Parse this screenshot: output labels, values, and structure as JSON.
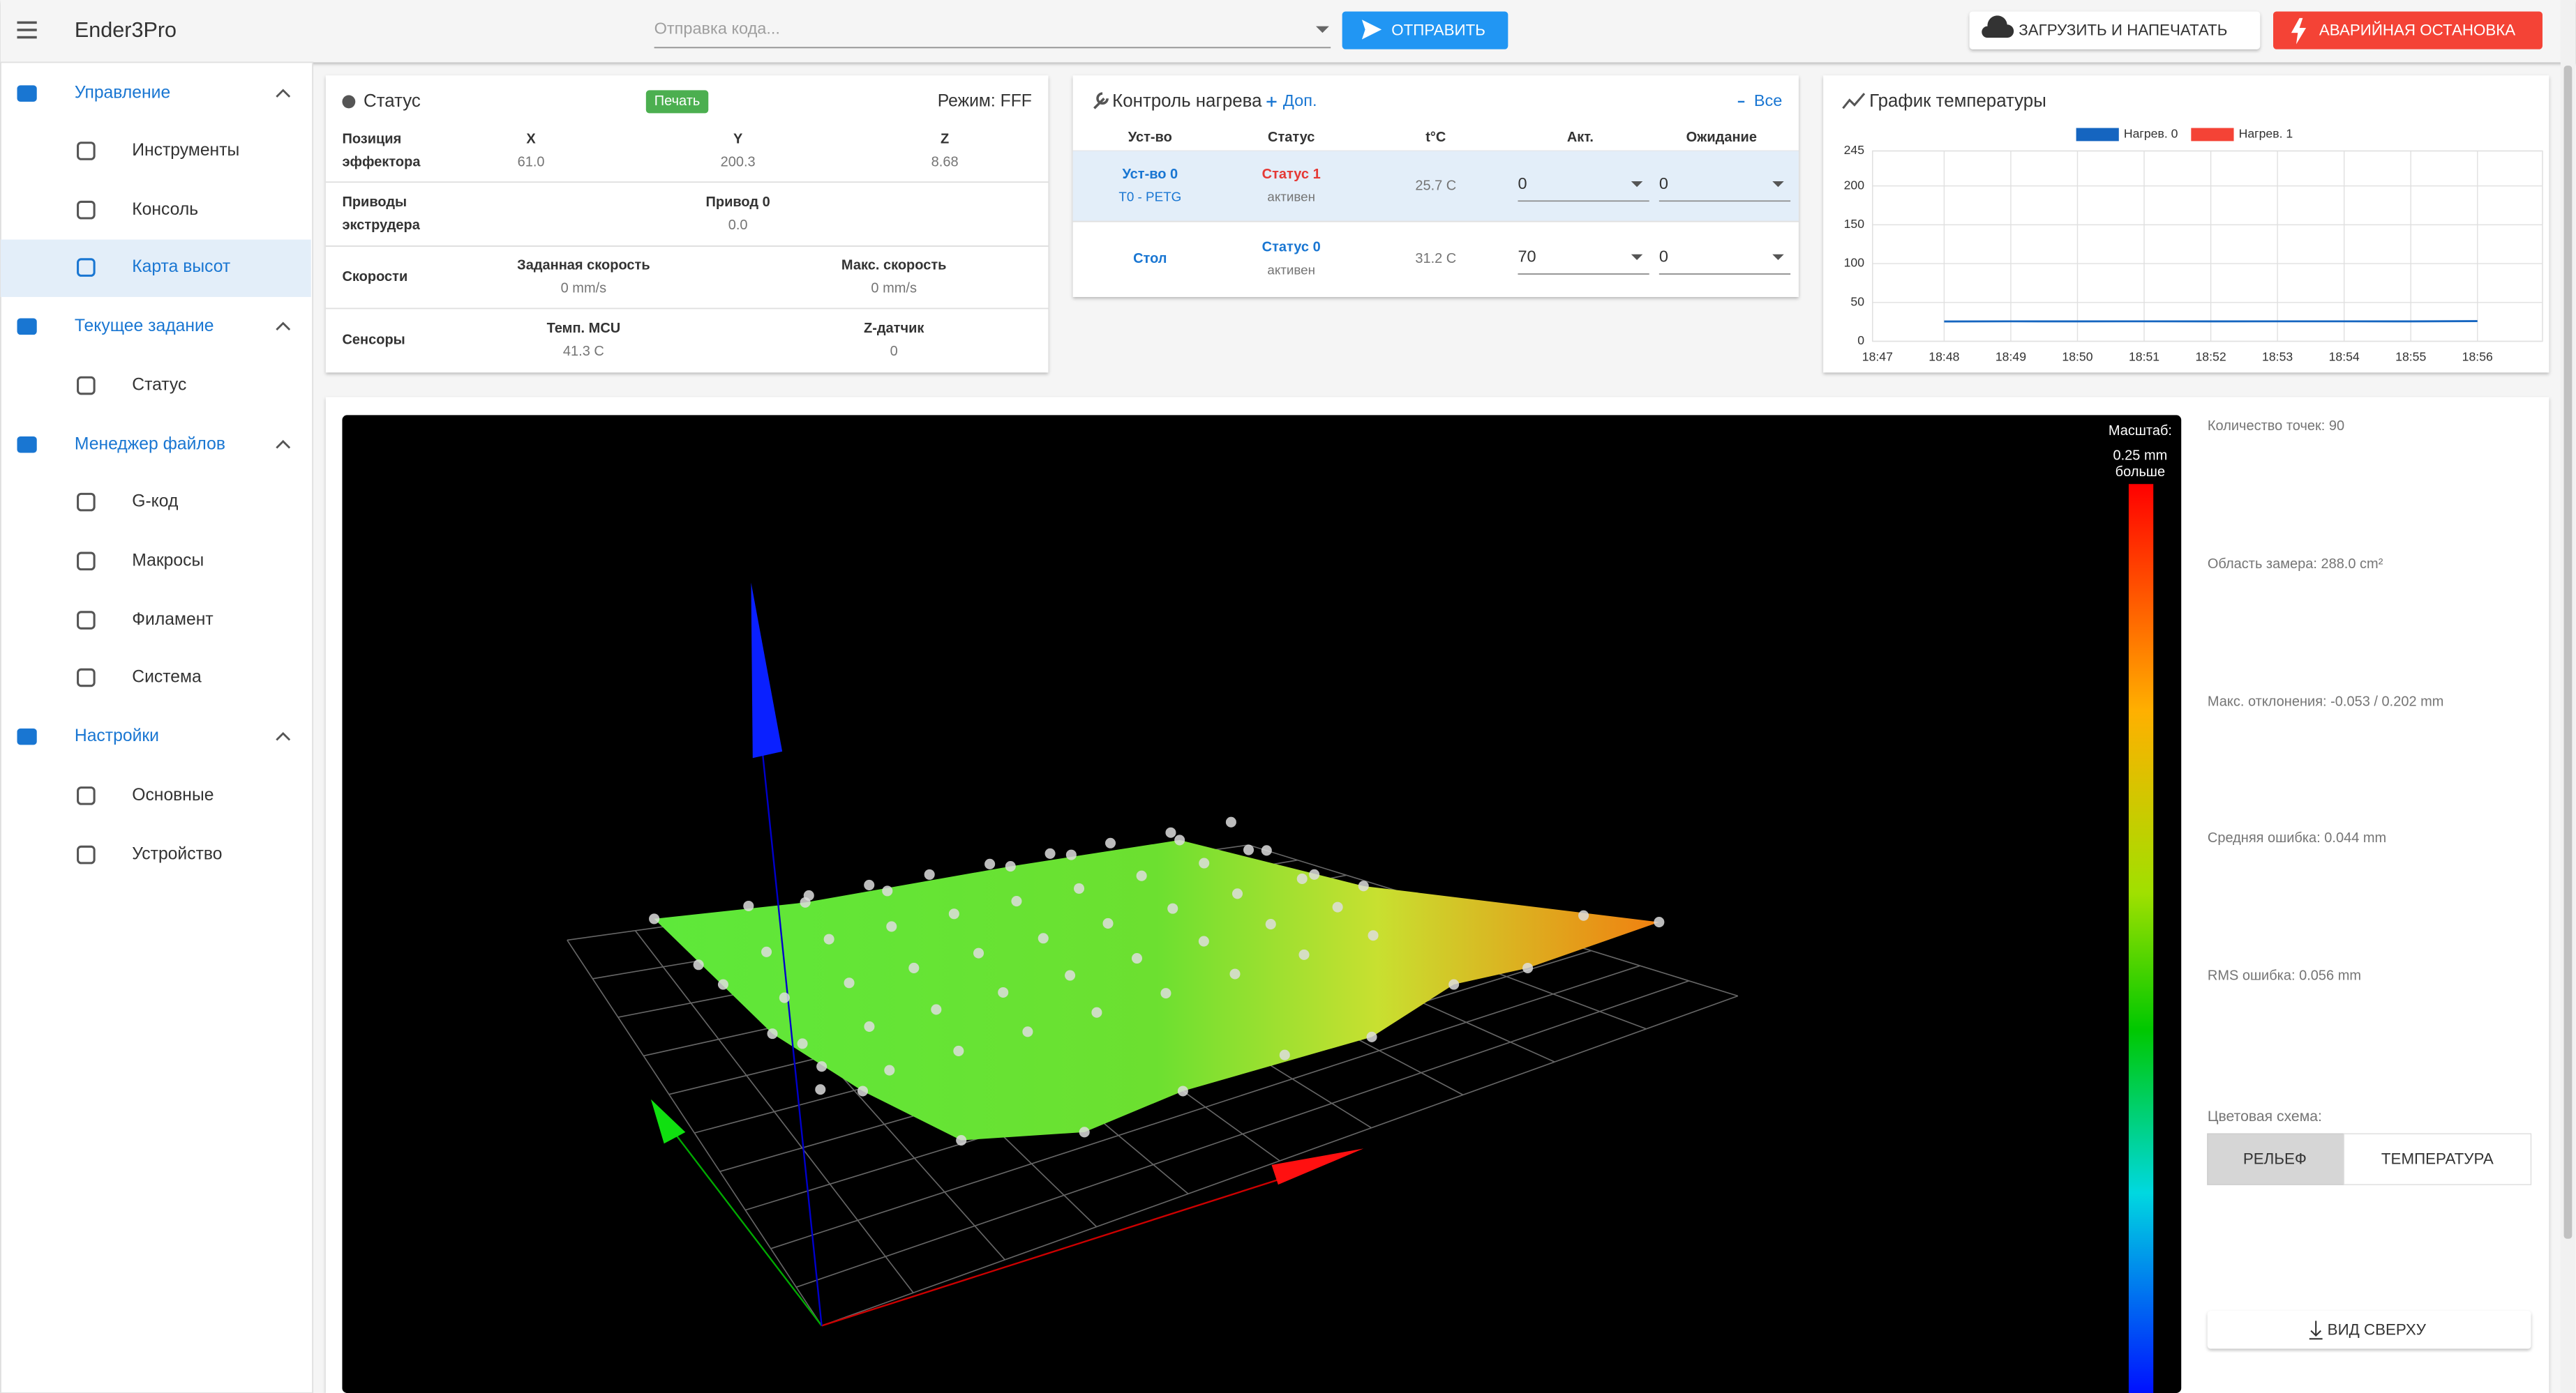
{
  "header": {
    "title": "Ender3Pro",
    "code_placeholder": "Отправка кода...",
    "send": "ОТПРАВИТЬ",
    "upload": "ЗАГРУЗИТЬ И НАПЕЧАТАТЬ",
    "emergency": "АВАРИЙНАЯ ОСТАНОВКА"
  },
  "sidebar": {
    "groups": [
      {
        "title": "Управление",
        "items": [
          "Инструменты",
          "Консоль",
          "Карта высот"
        ]
      },
      {
        "title": "Текущее задание",
        "items": [
          "Статус"
        ]
      },
      {
        "title": "Менеджер файлов",
        "items": [
          "G-код",
          "Макросы",
          "Филамент",
          "Система"
        ]
      },
      {
        "title": "Настройки",
        "items": [
          "Основные",
          "Устройство"
        ]
      }
    ]
  },
  "status": {
    "title": "Статус",
    "state": "Печать",
    "mode": "Режим: FFF",
    "rows": [
      {
        "label": [
          "Позиция",
          "эффектора"
        ],
        "cells": [
          {
            "name": "X",
            "value": "61.0"
          },
          {
            "name": "Y",
            "value": "200.3"
          },
          {
            "name": "Z",
            "value": "8.68"
          }
        ]
      },
      {
        "label": [
          "Приводы",
          "экструдера"
        ],
        "cells": [
          {
            "name": "Привод 0",
            "value": "0.0"
          }
        ]
      },
      {
        "label": [
          "Скорости"
        ],
        "cells": [
          {
            "name": "Заданная скорость",
            "value": "0 mm/s"
          },
          {
            "name": "Макс. скорость",
            "value": "0 mm/s"
          }
        ]
      },
      {
        "label": [
          "Сенсоры"
        ],
        "cells": [
          {
            "name": "Темп. MCU",
            "value": "41.3 C"
          },
          {
            "name": "Z-датчик",
            "value": "0"
          }
        ]
      }
    ]
  },
  "heaters": {
    "title": "Контроль нагрева",
    "extra": "Доп.",
    "all": "Все",
    "columns": [
      "Уст-во",
      "Статус",
      "t°C",
      "Акт.",
      "Ожидание"
    ],
    "rows": [
      {
        "device": "Уст-во 0",
        "sub": "T0 - PETG",
        "status": "Статус 1",
        "state": "активен",
        "temp": "25.7 C",
        "active": "0",
        "standby": "0"
      },
      {
        "device": "Стол",
        "status": "Статус 0",
        "state": "активен",
        "temp": "31.2 C",
        "active": "70",
        "standby": "0"
      }
    ]
  },
  "temp_chart": {
    "title": "График температуры",
    "ylim": [
      0,
      245
    ],
    "yticks": [
      0,
      50,
      100,
      150,
      200,
      245
    ],
    "grid": true,
    "categories": [
      "18:47",
      "18:48",
      "18:49",
      "18:50",
      "18:51",
      "18:52",
      "18:53",
      "18:54",
      "18:55",
      "18:56"
    ],
    "series": [
      {
        "name": "Нагрев. 0",
        "color": "#1565c0",
        "values": [
          null,
          25.5,
          25.7,
          25.6,
          25.7,
          25.6,
          25.7,
          25.7,
          25.6,
          26
        ]
      },
      {
        "name": "Нагрев. 1",
        "color": "#f44336",
        "values": [
          null,
          null,
          null,
          null,
          null,
          null,
          null,
          null,
          null,
          null
        ]
      }
    ]
  },
  "heightmap": {
    "scale_title": "Масштаб:",
    "scale_value": "0.25 mm",
    "scale_note": "больше",
    "stats": [
      "Количество точек: 90",
      "Область замера: 288.0 cm²",
      "Макс. отклонения: -0.053 / 0.202 mm",
      "Средняя ошибка: 0.044 mm",
      "RMS ошибка: 0.056 mm"
    ],
    "color_scheme_label": "Цветовая схема:",
    "schemes": [
      "РЕЛЬЕФ",
      "ТЕМПЕРАТУРА"
    ],
    "top_view": "ВИД СВЕРХУ"
  }
}
